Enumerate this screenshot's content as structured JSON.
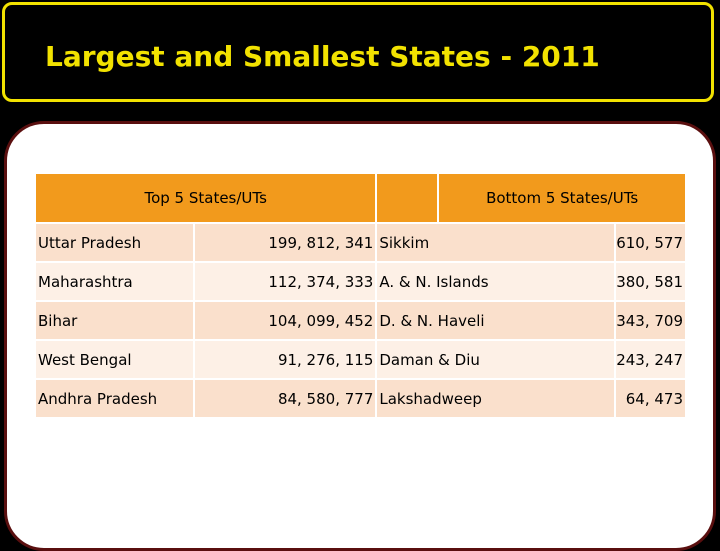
{
  "title": "Largest and Smallest States - 2011",
  "table": {
    "left_header": "Top 5 States/UTs",
    "right_header": "Bottom 5 States/UTs",
    "top": [
      {
        "state": "Uttar Pradesh",
        "population": "199, 812, 341"
      },
      {
        "state": "Maharashtra",
        "population": "112, 374, 333"
      },
      {
        "state": "Bihar",
        "population": "104, 099, 452"
      },
      {
        "state": "West Bengal",
        "population": "91, 276, 115"
      },
      {
        "state": "Andhra Pradesh",
        "population": "84, 580, 777"
      }
    ],
    "bottom": [
      {
        "state": "Sikkim",
        "population": "610, 577"
      },
      {
        "state": "A. & N. Islands",
        "population": "380, 581"
      },
      {
        "state": "D. & N. Haveli",
        "population": "343, 709"
      },
      {
        "state": "Daman & Diu",
        "population": "243, 247"
      },
      {
        "state": "Lakshadweep",
        "population": "64, 473"
      }
    ]
  },
  "colors": {
    "title_text": "#f2e200",
    "title_background": "#000000",
    "header_fill": "#f29a1c",
    "row_fill_dark": "#fae0cc",
    "row_fill_light": "#fdf0e6",
    "panel_border": "#5a0f0f"
  }
}
